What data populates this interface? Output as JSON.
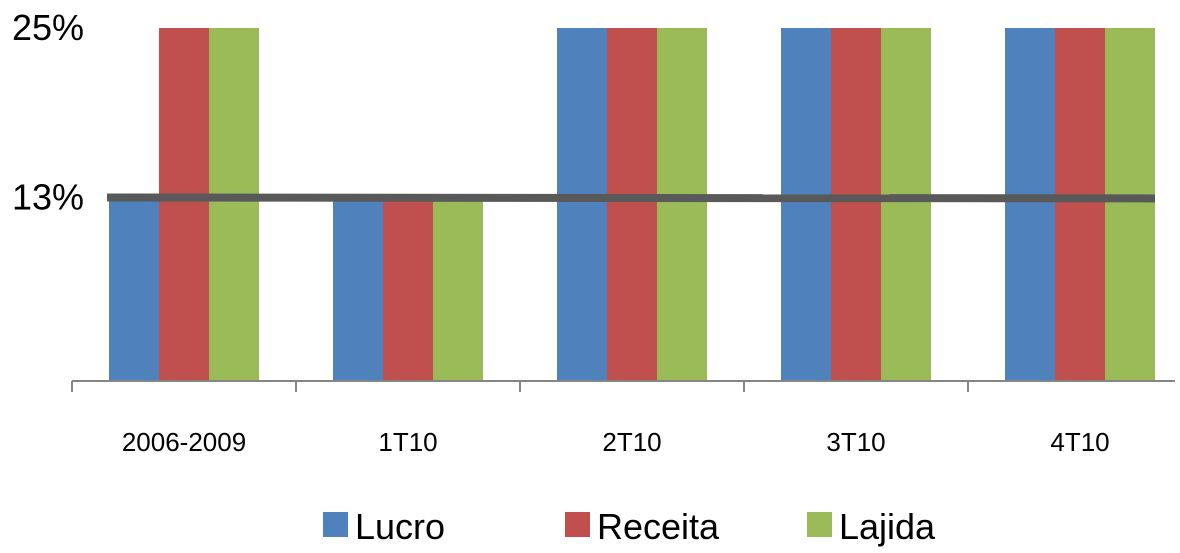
{
  "chart_data": {
    "type": "bar",
    "categories": [
      "2006-2009",
      "1T10",
      "2T10",
      "3T10",
      "4T10"
    ],
    "series": [
      {
        "name": "Lucro",
        "color": "#4f81bd",
        "values": [
          13,
          13,
          25,
          25,
          25
        ]
      },
      {
        "name": "Receita",
        "color": "#c0504d",
        "values": [
          25,
          13,
          25,
          25,
          25
        ]
      },
      {
        "name": "Lajida",
        "color": "#9bbb59",
        "values": [
          25,
          13,
          25,
          25,
          25
        ]
      }
    ],
    "reference_line": {
      "value": 13,
      "color": "#595959"
    },
    "yticks": [
      "25%",
      "13%"
    ],
    "ytick_values": [
      25,
      13
    ],
    "ylim": [
      0,
      25
    ],
    "legend_position": "bottom",
    "grid": false
  }
}
